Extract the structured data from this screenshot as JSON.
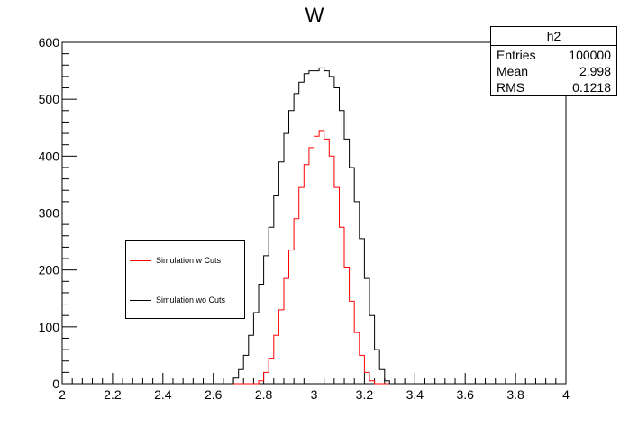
{
  "chart_data": {
    "type": "histogram",
    "title": "W",
    "xlabel": "",
    "ylabel": "",
    "xlim": [
      2,
      4
    ],
    "ylim": [
      0,
      600
    ],
    "x_ticks": [
      "2",
      "2.2",
      "2.4",
      "2.6",
      "2.8",
      "3",
      "3.2",
      "3.4",
      "3.6",
      "3.8",
      "4"
    ],
    "y_ticks": [
      "0",
      "100",
      "200",
      "300",
      "400",
      "500",
      "600"
    ],
    "grid": false,
    "legend_placement": "middle-left",
    "series": [
      {
        "name": "Simulation w Cuts",
        "color": "#ff0000",
        "x": [
          2.76,
          2.78,
          2.8,
          2.82,
          2.84,
          2.86,
          2.88,
          2.9,
          2.92,
          2.94,
          2.96,
          2.98,
          3.0,
          3.02,
          3.04,
          3.06,
          3.08,
          3.1,
          3.12,
          3.14,
          3.16,
          3.18,
          3.2,
          3.22,
          3.24
        ],
        "y": [
          0,
          5,
          20,
          45,
          85,
          130,
          185,
          235,
          290,
          345,
          385,
          415,
          435,
          445,
          430,
          400,
          345,
          275,
          205,
          145,
          90,
          50,
          20,
          5,
          0
        ]
      },
      {
        "name": "Simulation wo Cuts",
        "color": "#000000",
        "x": [
          2.66,
          2.68,
          2.7,
          2.72,
          2.74,
          2.76,
          2.78,
          2.8,
          2.82,
          2.84,
          2.86,
          2.88,
          2.9,
          2.92,
          2.94,
          2.96,
          2.98,
          3.0,
          3.02,
          3.04,
          3.06,
          3.08,
          3.1,
          3.12,
          3.14,
          3.16,
          3.18,
          3.2,
          3.22,
          3.24,
          3.26,
          3.28,
          3.3
        ],
        "y": [
          0,
          10,
          25,
          50,
          85,
          125,
          175,
          225,
          275,
          330,
          390,
          440,
          480,
          510,
          530,
          545,
          550,
          550,
          555,
          550,
          540,
          520,
          480,
          430,
          380,
          320,
          255,
          185,
          120,
          60,
          25,
          5,
          0
        ]
      }
    ]
  },
  "stats": {
    "title": "h2",
    "entries_label": "Entries",
    "entries_value": "100000",
    "mean_label": "Mean",
    "mean_value": "2.998",
    "rms_label": "RMS",
    "rms_value": "0.1218"
  }
}
